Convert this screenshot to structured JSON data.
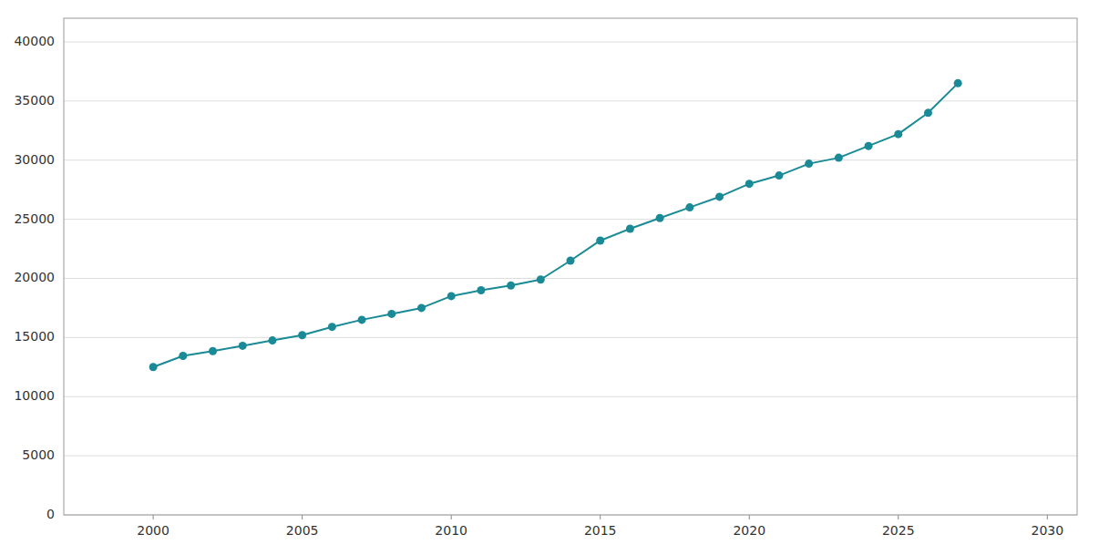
{
  "chart_data": {
    "type": "line",
    "x": [
      2000,
      2001,
      2002,
      2003,
      2004,
      2005,
      2006,
      2007,
      2008,
      2009,
      2010,
      2011,
      2012,
      2013,
      2014,
      2015,
      2016,
      2017,
      2018,
      2019,
      2020,
      2021,
      2022,
      2023,
      2024,
      2025,
      2026,
      2027
    ],
    "values": [
      12500,
      13450,
      13850,
      14300,
      14750,
      15200,
      15900,
      16500,
      17000,
      17500,
      18500,
      19000,
      19400,
      19900,
      21500,
      23200,
      24200,
      25100,
      26000,
      26900,
      28000,
      28700,
      29700,
      30200,
      31200,
      32200,
      34000,
      36500
    ],
    "color": "#1a8a96",
    "marker": "circle",
    "xlim": [
      1997,
      2031
    ],
    "ylim": [
      0,
      42000
    ],
    "xticks": [
      2000,
      2005,
      2010,
      2015,
      2020,
      2025,
      2030
    ],
    "yticks": [
      0,
      5000,
      10000,
      15000,
      20000,
      25000,
      30000,
      35000,
      40000
    ],
    "grid": true
  }
}
